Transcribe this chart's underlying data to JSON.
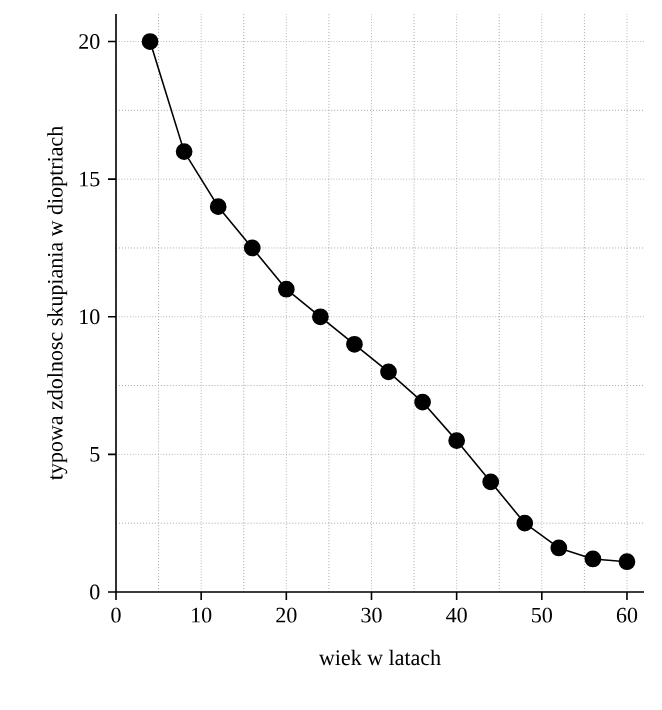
{
  "chart_data": {
    "type": "line",
    "xlabel": "wiek w latach",
    "ylabel": "typowa zdolnosc skupiania w dioptriach",
    "x": [
      4,
      8,
      12,
      16,
      20,
      24,
      28,
      32,
      36,
      40,
      44,
      48,
      52,
      56,
      60
    ],
    "series": [
      {
        "color": "#000000",
        "values": [
          20,
          16,
          14,
          12.5,
          11,
          10,
          9,
          8,
          6.9,
          5.5,
          4,
          2.5,
          1.6,
          1.2,
          1.1
        ]
      }
    ],
    "xlim": [
      0,
      62
    ],
    "ylim": [
      0,
      21
    ],
    "xticks": [
      0,
      10,
      20,
      30,
      40,
      50,
      60
    ],
    "yticks": [
      0,
      5,
      10,
      15,
      20
    ],
    "grid": true,
    "marker": "circle",
    "line_style": "solid"
  }
}
